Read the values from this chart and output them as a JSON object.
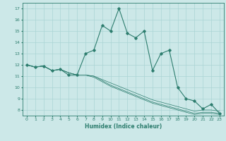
{
  "title": "",
  "xlabel": "Humidex (Indice chaleur)",
  "ylabel": "",
  "background_color": "#cce8e8",
  "line_color": "#2d7d6e",
  "xlim": [
    -0.5,
    23.5
  ],
  "ylim": [
    7.5,
    17.5
  ],
  "xticks": [
    0,
    1,
    2,
    3,
    4,
    5,
    6,
    7,
    8,
    9,
    10,
    11,
    12,
    13,
    14,
    15,
    16,
    17,
    18,
    19,
    20,
    21,
    22,
    23
  ],
  "yticks": [
    8,
    9,
    10,
    11,
    12,
    13,
    14,
    15,
    16,
    17
  ],
  "grid_color": "#aad4d4",
  "series": [
    [
      12.0,
      11.8,
      11.9,
      11.5,
      11.6,
      11.1,
      11.1,
      13.0,
      13.3,
      15.5,
      15.0,
      17.0,
      14.8,
      14.4,
      15.0,
      11.5,
      13.0,
      13.3,
      10.0,
      9.0,
      8.8,
      8.1,
      8.5,
      7.7
    ],
    [
      12.0,
      11.8,
      11.9,
      11.5,
      11.6,
      11.3,
      11.1,
      11.1,
      11.0,
      10.7,
      10.4,
      10.1,
      9.8,
      9.5,
      9.2,
      8.9,
      8.7,
      8.5,
      8.3,
      8.1,
      7.9,
      8.0,
      8.0,
      7.9
    ],
    [
      12.0,
      11.8,
      11.9,
      11.5,
      11.6,
      11.3,
      11.1,
      11.1,
      11.0,
      10.6,
      10.2,
      9.9,
      9.6,
      9.3,
      9.0,
      8.7,
      8.5,
      8.3,
      8.1,
      7.9,
      7.7,
      7.8,
      7.8,
      7.7
    ],
    [
      12.0,
      11.8,
      11.9,
      11.5,
      11.6,
      11.3,
      11.1,
      11.1,
      10.9,
      10.5,
      10.1,
      9.8,
      9.5,
      9.2,
      8.9,
      8.6,
      8.4,
      8.2,
      8.0,
      7.8,
      7.6,
      7.7,
      7.7,
      7.6
    ]
  ]
}
